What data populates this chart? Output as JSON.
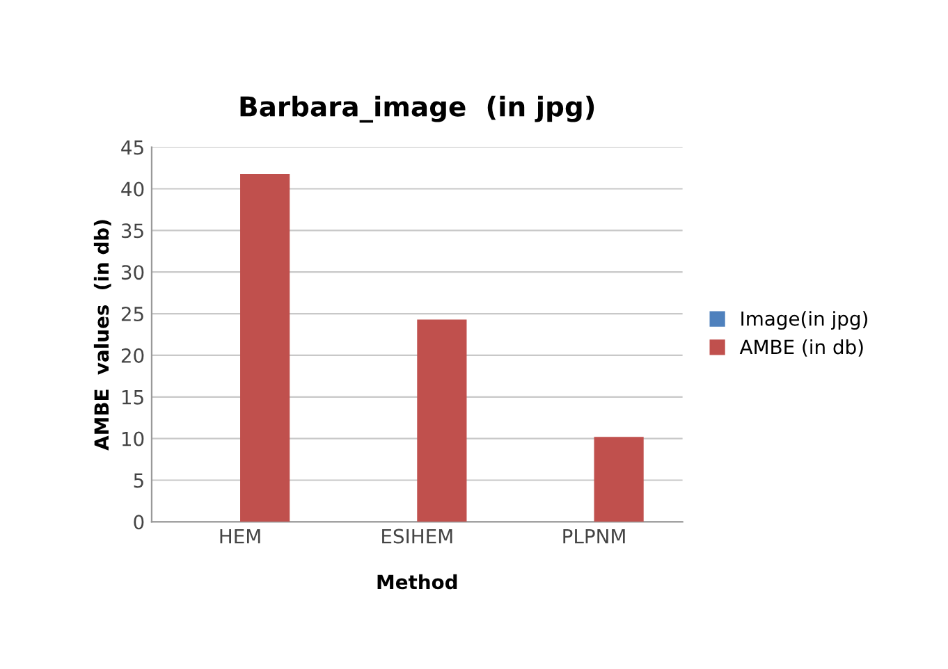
{
  "chart_data": {
    "type": "bar",
    "title": "Barbara_image  (in jpg)",
    "xlabel": "Method",
    "ylabel": "AMBE  values  (in db)",
    "categories": [
      "HEM",
      "ESIHEM",
      "PLPNM"
    ],
    "series": [
      {
        "name": "Image(in jpg)",
        "color": "#4f81bd",
        "values": [
          0,
          0,
          0
        ]
      },
      {
        "name": "AMBE (in db)",
        "color": "#c0504d",
        "values": [
          41.8,
          24.3,
          10.2
        ]
      }
    ],
    "ylim": [
      0,
      45
    ],
    "yticks": [
      0,
      5,
      10,
      15,
      20,
      25,
      30,
      35,
      40,
      45
    ],
    "grid": "y",
    "legend": "right"
  }
}
